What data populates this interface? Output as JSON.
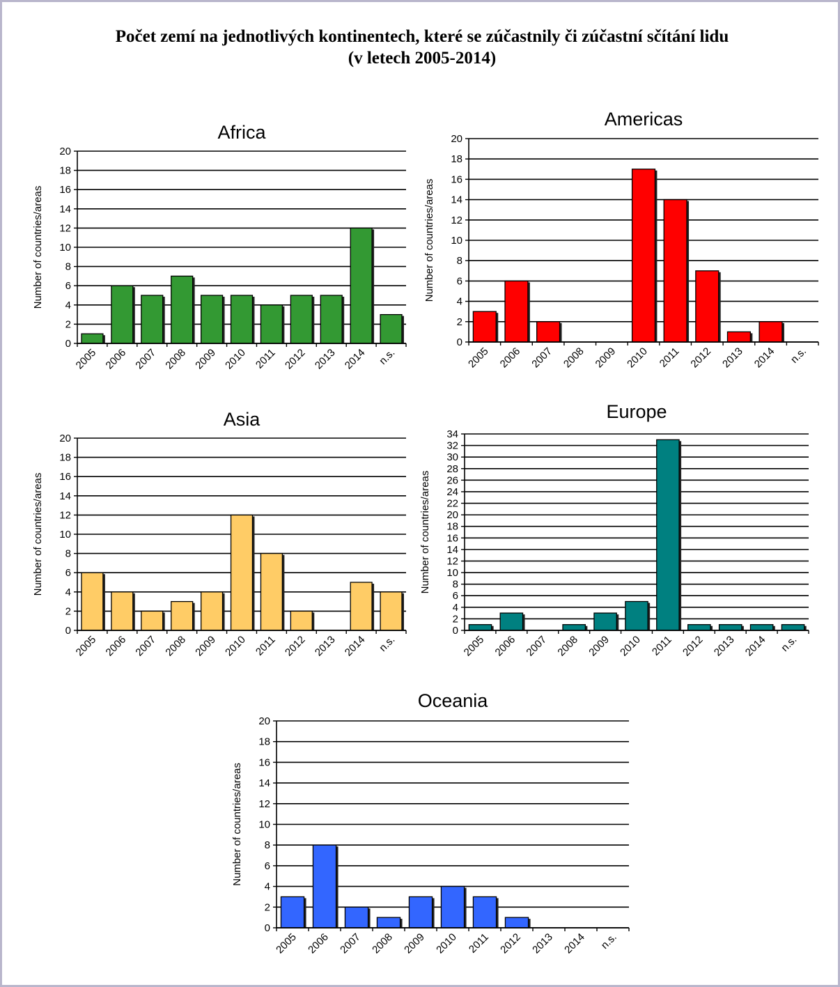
{
  "page": {
    "title_line1": "Počet zemí na jednotlivých kontinentech, které se zúčastnily či zúčastní sčítání lidu",
    "title_line2": "(v letech 2005-2014)"
  },
  "chart_data": [
    {
      "id": "africa",
      "type": "bar",
      "title": "Africa",
      "color": "#339933",
      "categories": [
        "2005",
        "2006",
        "2007",
        "2008",
        "2009",
        "2010",
        "2011",
        "2012",
        "2013",
        "2014",
        "n.s."
      ],
      "values": [
        1,
        6,
        5,
        7,
        5,
        5,
        4,
        5,
        5,
        12,
        3
      ],
      "ylabel": "Number of countries/areas",
      "ylim": [
        0,
        20
      ],
      "ystep": 2,
      "grid": true,
      "legend": "none"
    },
    {
      "id": "americas",
      "type": "bar",
      "title": "Americas",
      "color": "#ff0000",
      "categories": [
        "2005",
        "2006",
        "2007",
        "2008",
        "2009",
        "2010",
        "2011",
        "2012",
        "2013",
        "2014",
        "n.s."
      ],
      "values": [
        3,
        6,
        2,
        0,
        0,
        17,
        14,
        7,
        1,
        2,
        0
      ],
      "ylabel": "Number of countries/areas",
      "ylim": [
        0,
        20
      ],
      "ystep": 2,
      "grid": true,
      "legend": "none"
    },
    {
      "id": "asia",
      "type": "bar",
      "title": "Asia",
      "color": "#ffcc66",
      "categories": [
        "2005",
        "2006",
        "2007",
        "2008",
        "2009",
        "2010",
        "2011",
        "2012",
        "2013",
        "2014",
        "n.s."
      ],
      "values": [
        6,
        4,
        2,
        3,
        4,
        12,
        8,
        2,
        0,
        5,
        4
      ],
      "ylabel": "Number of countries/areas",
      "ylim": [
        0,
        20
      ],
      "ystep": 2,
      "grid": true,
      "legend": "none"
    },
    {
      "id": "europe",
      "type": "bar",
      "title": "Europe",
      "color": "#008080",
      "categories": [
        "2005",
        "2006",
        "2007",
        "2008",
        "2009",
        "2010",
        "2011",
        "2012",
        "2013",
        "2014",
        "n.s."
      ],
      "values": [
        1,
        3,
        0,
        1,
        3,
        5,
        33,
        1,
        1,
        1,
        1
      ],
      "ylabel": "Number of countries/areas",
      "ylim": [
        0,
        34
      ],
      "ystep": 2,
      "grid": true,
      "legend": "none"
    },
    {
      "id": "oceania",
      "type": "bar",
      "title": "Oceania",
      "color": "#3366ff",
      "categories": [
        "2005",
        "2006",
        "2007",
        "2008",
        "2009",
        "2010",
        "2011",
        "2012",
        "2013",
        "2014",
        "n.s."
      ],
      "values": [
        3,
        8,
        2,
        1,
        3,
        4,
        3,
        1,
        0,
        0,
        0
      ],
      "ylabel": "Number of countries/areas",
      "ylim": [
        0,
        20
      ],
      "ystep": 2,
      "grid": true,
      "legend": "none"
    }
  ]
}
